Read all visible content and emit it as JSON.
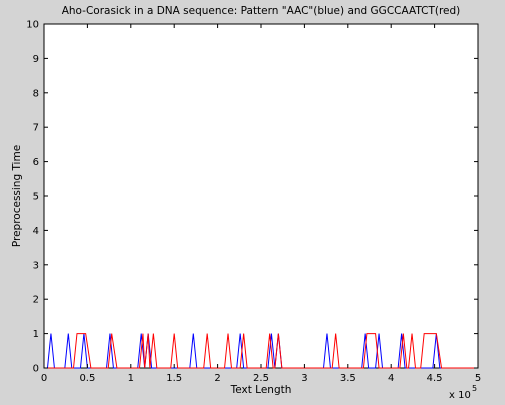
{
  "chart_data": {
    "type": "line",
    "title": "Aho-Corasick in a DNA sequence: Pattern \"AAC\"(blue) and GGCCAATCT(red)",
    "xlabel": "Text Length",
    "ylabel": "Preprocessing Time",
    "x_exponent_label": "x 10",
    "x_exponent_power": "5",
    "xlim": [
      0,
      5
    ],
    "ylim": [
      0,
      10
    ],
    "xticks": [
      0,
      0.5,
      1,
      1.5,
      2,
      2.5,
      3,
      3.5,
      4,
      4.5,
      5
    ],
    "xtick_labels": [
      "0",
      "0.5",
      "1",
      "1.5",
      "2",
      "2.5",
      "3",
      "3.5",
      "4",
      "4.5",
      "5"
    ],
    "yticks": [
      0,
      1,
      2,
      3,
      4,
      5,
      6,
      7,
      8,
      9,
      10
    ],
    "ytick_labels": [
      "0",
      "1",
      "2",
      "3",
      "4",
      "5",
      "6",
      "7",
      "8",
      "9",
      "10"
    ],
    "grid": false,
    "series": [
      {
        "color": "#0000ff",
        "x": [
          0,
          0.04,
          0.08,
          0.12,
          0.24,
          0.28,
          0.32,
          0.42,
          0.46,
          0.5,
          0.72,
          0.76,
          0.8,
          1.08,
          1.12,
          1.16,
          1.2,
          1.24,
          1.28,
          1.68,
          1.72,
          1.76,
          2.22,
          2.26,
          2.3,
          2.58,
          2.62,
          2.66,
          2.7,
          2.74,
          2.78,
          3.22,
          3.26,
          3.3,
          3.66,
          3.7,
          3.74,
          3.82,
          3.86,
          3.9,
          4.08,
          4.12,
          4.16,
          4.48,
          4.52,
          4.56,
          5
        ],
        "y": [
          0,
          0,
          1,
          0,
          0,
          1,
          0,
          0,
          1,
          0,
          0,
          1,
          0,
          0,
          1,
          0,
          1,
          0,
          0,
          0,
          1,
          0,
          0,
          1,
          0,
          0,
          1,
          0,
          1,
          0,
          0,
          0,
          1,
          0,
          0,
          1,
          0,
          0,
          1,
          0,
          0,
          1,
          0,
          0,
          1,
          0,
          0
        ]
      },
      {
        "color": "#ff0000",
        "x": [
          0,
          0.34,
          0.38,
          0.44,
          0.48,
          0.54,
          0.74,
          0.78,
          0.84,
          1.1,
          1.14,
          1.16,
          1.2,
          1.22,
          1.26,
          1.3,
          1.46,
          1.5,
          1.54,
          1.84,
          1.88,
          1.92,
          2.08,
          2.12,
          2.16,
          2.26,
          2.3,
          2.34,
          2.56,
          2.6,
          2.64,
          2.66,
          2.7,
          2.74,
          3.32,
          3.36,
          3.4,
          3.68,
          3.72,
          3.78,
          3.82,
          3.86,
          4.1,
          4.14,
          4.18,
          4.2,
          4.24,
          4.28,
          4.34,
          4.38,
          4.44,
          4.48,
          4.52,
          4.58,
          4.62,
          5
        ],
        "y": [
          0,
          0,
          1,
          1,
          1,
          0,
          0,
          1,
          0,
          0,
          1,
          0,
          1,
          0,
          1,
          0,
          0,
          1,
          0,
          0,
          1,
          0,
          0,
          1,
          0,
          0,
          1,
          0,
          0,
          1,
          0,
          0,
          1,
          0,
          0,
          1,
          0,
          0,
          1,
          1,
          1,
          0,
          0,
          1,
          0,
          0,
          1,
          0,
          0,
          1,
          1,
          1,
          1,
          0,
          0,
          0
        ]
      }
    ]
  }
}
